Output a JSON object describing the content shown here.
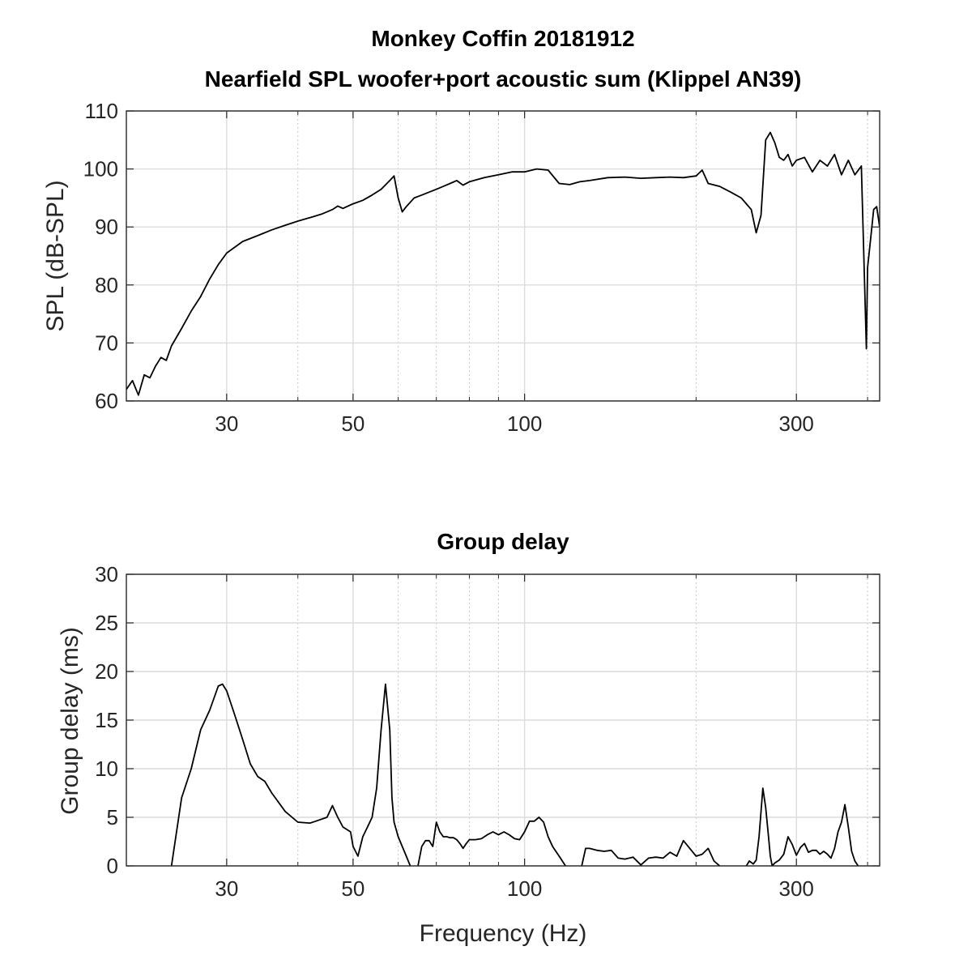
{
  "chart_data": [
    {
      "type": "line",
      "title": "Monkey Coffin 20181912",
      "subtitle": "Nearfield SPL woofer+port acoustic sum (Klippel AN39)",
      "xlabel": "",
      "ylabel": "SPL (dB-SPL)",
      "xscale": "log",
      "xlim": [
        20,
        420
      ],
      "ylim": [
        60,
        110
      ],
      "xticks": [
        30,
        50,
        100,
        300
      ],
      "xtick_labels": [
        "30",
        "50",
        "100",
        "300"
      ],
      "yticks": [
        60,
        70,
        80,
        90,
        100,
        110
      ],
      "ytick_labels": [
        "60",
        "70",
        "80",
        "90",
        "100",
        "110"
      ],
      "grid": true,
      "line_color": "#000000",
      "series": [
        {
          "x": [
            20,
            20.5,
            21,
            21.5,
            22,
            22.5,
            23,
            23.5,
            24,
            25,
            26,
            27,
            28,
            29,
            30,
            32,
            34,
            36,
            38,
            40,
            42,
            44,
            46,
            47,
            48,
            50,
            52,
            54,
            56,
            58,
            59,
            60,
            61,
            62,
            64,
            66,
            68,
            70,
            72,
            74,
            76,
            78,
            80,
            85,
            90,
            95,
            100,
            105,
            110,
            115,
            120,
            125,
            130,
            140,
            150,
            160,
            170,
            180,
            190,
            200,
            205,
            210,
            220,
            230,
            240,
            250,
            255,
            260,
            265,
            270,
            275,
            280,
            285,
            290,
            295,
            300,
            310,
            320,
            330,
            340,
            350,
            360,
            370,
            380,
            390,
            398,
            400,
            405,
            410,
            415,
            420
          ],
          "y": [
            62,
            63.5,
            61,
            64.5,
            64,
            66,
            67.5,
            67,
            69.5,
            72.5,
            75.5,
            78,
            81,
            83.5,
            85.5,
            87.5,
            88.5,
            89.5,
            90.3,
            91,
            91.6,
            92.2,
            93,
            93.6,
            93.2,
            94,
            94.6,
            95.5,
            96.5,
            98,
            98.8,
            95,
            92.6,
            93.5,
            95,
            95.5,
            96,
            96.5,
            97,
            97.5,
            98,
            97.2,
            97.8,
            98.5,
            99,
            99.5,
            99.5,
            100,
            99.8,
            97.5,
            97.3,
            97.8,
            98,
            98.5,
            98.6,
            98.4,
            98.5,
            98.6,
            98.5,
            98.8,
            99.8,
            97.5,
            97,
            96,
            95,
            93,
            89,
            92,
            105,
            106.3,
            104.5,
            102,
            101.5,
            102.5,
            100.5,
            101.5,
            102,
            99.5,
            101.5,
            100.5,
            102.5,
            99,
            101.5,
            99,
            100.5,
            69,
            83,
            88,
            93,
            93.5,
            90
          ]
        }
      ]
    },
    {
      "type": "line",
      "title": "Group delay",
      "xlabel": "Frequency (Hz)",
      "ylabel": "Group delay (ms)",
      "xscale": "log",
      "xlim": [
        20,
        420
      ],
      "ylim": [
        0,
        30
      ],
      "xticks": [
        30,
        50,
        100,
        300
      ],
      "xtick_labels": [
        "30",
        "50",
        "100",
        "300"
      ],
      "yticks": [
        0,
        5,
        10,
        15,
        20,
        25,
        30
      ],
      "ytick_labels": [
        "0",
        "5",
        "10",
        "15",
        "20",
        "25",
        "30"
      ],
      "grid": true,
      "line_color": "#000000",
      "series": [
        {
          "segments": [
            {
              "x": [
                24,
                25,
                26,
                27,
                28,
                29,
                29.5,
                30,
                31,
                32,
                33,
                34,
                35,
                36,
                38,
                40,
                42,
                43,
                45,
                46,
                47,
                48,
                49.5,
                50,
                51,
                52,
                53,
                54,
                55,
                56,
                57,
                58,
                58.5,
                59,
                60,
                61,
                62,
                63
              ],
              "y": [
                0,
                7,
                10,
                14,
                16,
                18.5,
                18.7,
                18,
                15.5,
                13,
                10.5,
                9.2,
                8.7,
                7.5,
                5.6,
                4.5,
                4.4,
                4.6,
                5,
                6.2,
                5,
                4,
                3.5,
                2,
                1,
                3,
                4,
                5,
                8,
                14,
                18.7,
                14,
                7,
                4.5,
                3,
                2,
                1,
                0
              ]
            },
            {
              "x": [
                65,
                66,
                67,
                68,
                69,
                70,
                71,
                72,
                73,
                74,
                75,
                76,
                77,
                78,
                79,
                80,
                82,
                84,
                86,
                88,
                90,
                92,
                94,
                96,
                98,
                100,
                102,
                104,
                106,
                108,
                110,
                112,
                115,
                118
              ],
              "y": [
                0,
                2,
                2.6,
                2.6,
                2,
                4.5,
                3.5,
                3,
                3,
                2.9,
                2.9,
                2.7,
                2.3,
                1.8,
                2.3,
                2.7,
                2.7,
                2.8,
                3.2,
                3.5,
                3.2,
                3.5,
                3.2,
                2.8,
                2.7,
                3.5,
                4.6,
                4.6,
                5,
                4.5,
                3,
                2,
                1,
                0
              ]
            },
            {
              "x": [
                126,
                128,
                130,
                134,
                138,
                142,
                146,
                150,
                155,
                160,
                165,
                170,
                175,
                180,
                185,
                190,
                195,
                200,
                205,
                210,
                215,
                220
              ],
              "y": [
                0,
                1.8,
                1.8,
                1.6,
                1.5,
                1.6,
                0.8,
                0.7,
                0.9,
                0.1,
                0.8,
                0.9,
                0.8,
                1.4,
                1,
                2.6,
                1.8,
                1,
                1.2,
                1.8,
                0.5,
                0
              ]
            },
            {
              "x": [
                245,
                248,
                252,
                255,
                258,
                262,
                265,
                268,
                270,
                272,
                275,
                280,
                285,
                290,
                295,
                300,
                305,
                310,
                315,
                320,
                325,
                330,
                335,
                340,
                345,
                350,
                355,
                360,
                365,
                370,
                375,
                380,
                385
              ],
              "y": [
                0,
                0.5,
                0.2,
                0.6,
                3,
                8,
                6,
                3,
                1,
                0,
                0.3,
                0.6,
                1.2,
                3,
                2.2,
                1.1,
                1.9,
                2.3,
                1.4,
                1.6,
                1.6,
                1.2,
                1.5,
                1.2,
                0.8,
                1.8,
                3.5,
                4.5,
                6.3,
                4,
                1.5,
                0.5,
                0
              ]
            }
          ]
        }
      ]
    }
  ]
}
